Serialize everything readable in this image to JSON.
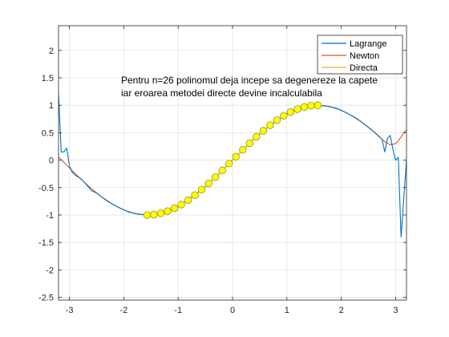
{
  "chart_data": {
    "type": "line",
    "title": "",
    "xlabel": "",
    "ylabel": "",
    "xlim": [
      -3.2,
      3.2
    ],
    "ylim": [
      -2.55,
      2.45
    ],
    "xticks": [
      -3,
      -2,
      -1,
      0,
      1,
      2,
      3
    ],
    "yticks": [
      -2.5,
      -2,
      -1.5,
      -1,
      -0.5,
      0,
      0.5,
      1,
      1.5,
      2
    ],
    "xtick_labels": [
      "-3",
      "-2",
      "-1",
      "0",
      "1",
      "2",
      "3"
    ],
    "ytick_labels": [
      "-2.5",
      "-2",
      "-1.5",
      "-1",
      "-0.5",
      "0",
      "0.5",
      "1",
      "1.5",
      "2"
    ],
    "grid": true,
    "legend_position": "top-right",
    "series": [
      {
        "name": "Lagrange",
        "color": "#0072BD",
        "x": [
          -3.2,
          -3.15,
          -3.1,
          -3.05,
          -3.0,
          -2.95,
          -2.9,
          -2.8,
          -2.7,
          -2.6,
          -2.5,
          -2.3,
          -2.1,
          -1.9,
          -1.7,
          -1.5,
          -1.3,
          -1.1,
          -0.9,
          -0.7,
          -0.5,
          -0.3,
          -0.1,
          0.1,
          0.3,
          0.5,
          0.7,
          0.9,
          1.1,
          1.3,
          1.5,
          1.7,
          1.9,
          2.1,
          2.3,
          2.5,
          2.6,
          2.7,
          2.75,
          2.8,
          2.85,
          2.9,
          2.95,
          3.0,
          3.05,
          3.1,
          3.15,
          3.2
        ],
        "y": [
          1.2,
          0.15,
          0.15,
          0.22,
          -0.1,
          -0.22,
          -0.27,
          -0.33,
          -0.43,
          -0.55,
          -0.6,
          -0.75,
          -0.86,
          -0.95,
          -0.99,
          -1.0,
          -0.96,
          -0.89,
          -0.78,
          -0.64,
          -0.48,
          -0.3,
          -0.1,
          0.1,
          0.3,
          0.48,
          0.64,
          0.78,
          0.89,
          0.96,
          1.0,
          0.99,
          0.95,
          0.86,
          0.75,
          0.6,
          0.52,
          0.43,
          0.38,
          0.15,
          0.4,
          0.45,
          0.2,
          0.0,
          0.05,
          -1.4,
          -0.7,
          0.0
        ]
      },
      {
        "name": "Newton",
        "color": "#D95319",
        "x": [
          -3.2,
          -3.0,
          -2.8,
          -2.6,
          -2.4,
          -2.2,
          -2.0,
          -1.8,
          -1.6,
          -1.4,
          -1.2,
          -1.0,
          -0.8,
          -0.6,
          -0.4,
          -0.2,
          0.0,
          0.2,
          0.4,
          0.6,
          0.8,
          1.0,
          1.2,
          1.4,
          1.6,
          1.8,
          2.0,
          2.2,
          2.4,
          2.6,
          2.8,
          2.9,
          3.0,
          3.05,
          3.1,
          3.15,
          3.2
        ],
        "y": [
          0.058,
          -0.141,
          -0.335,
          -0.516,
          -0.675,
          -0.808,
          -0.909,
          -0.974,
          -1.0,
          -0.985,
          -0.932,
          -0.841,
          -0.717,
          -0.565,
          -0.389,
          -0.199,
          0.0,
          0.199,
          0.389,
          0.565,
          0.717,
          0.841,
          0.932,
          0.985,
          1.0,
          0.974,
          0.909,
          0.808,
          0.675,
          0.516,
          0.335,
          0.28,
          0.3,
          0.36,
          0.42,
          0.5,
          0.55
        ]
      },
      {
        "name": "Directa",
        "color": "#EDB120",
        "marker_color": "#FFFF00",
        "x": [
          -1.5708,
          -1.4451,
          -1.3195,
          -1.1938,
          -1.0681,
          -0.9425,
          -0.8168,
          -0.6912,
          -0.5655,
          -0.4398,
          -0.3142,
          -0.1885,
          -0.0628,
          0.0628,
          0.1885,
          0.3142,
          0.4398,
          0.5655,
          0.6912,
          0.8168,
          0.9425,
          1.0681,
          1.1938,
          1.3195,
          1.4451,
          1.5708
        ],
        "y": [
          -1.0,
          -0.9921,
          -0.9686,
          -0.9298,
          -0.8763,
          -0.809,
          -0.729,
          -0.6374,
          -0.5358,
          -0.4258,
          -0.309,
          -0.1874,
          -0.0628,
          0.0628,
          0.1874,
          0.309,
          0.4258,
          0.5358,
          0.6374,
          0.729,
          0.809,
          0.8763,
          0.9298,
          0.9686,
          0.9921,
          1.0
        ]
      }
    ],
    "annotation": {
      "lines": [
        "Pentru n=26  polinomul deja incepe sa degenereze la capete",
        "iar eroarea metodei directe devine incalculabila"
      ]
    }
  }
}
